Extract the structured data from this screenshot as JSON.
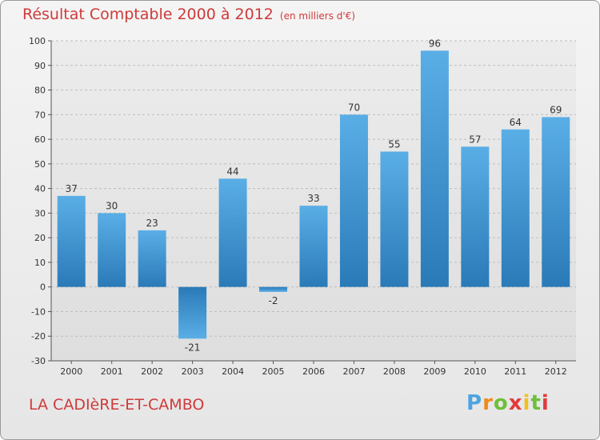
{
  "header": {
    "title": "Résultat Comptable 2000 à 2012",
    "subtitle": "(en milliers d'€)"
  },
  "footer": {
    "place": "LA CADIèRE-ET-CAMBO",
    "brand": "Proxiti"
  },
  "colors": {
    "title": "#d03a3a",
    "bar_light": "#5aaee6",
    "bar_dark": "#2a7ab8",
    "grid": "#bdbdbd"
  },
  "chart_data": {
    "type": "bar",
    "title": "Résultat Comptable 2000 à 2012 (en milliers d'€)",
    "xlabel": "",
    "ylabel": "",
    "categories": [
      "2000",
      "2001",
      "2002",
      "2003",
      "2004",
      "2005",
      "2006",
      "2007",
      "2008",
      "2009",
      "2010",
      "2011",
      "2012"
    ],
    "values": [
      37,
      30,
      23,
      -21,
      44,
      -2,
      33,
      70,
      55,
      96,
      57,
      64,
      69
    ],
    "ylim": [
      -30,
      100
    ],
    "yticks": [
      -30,
      -20,
      -10,
      0,
      10,
      20,
      30,
      40,
      50,
      60,
      70,
      80,
      90,
      100
    ],
    "grid": true,
    "legend": "none"
  }
}
